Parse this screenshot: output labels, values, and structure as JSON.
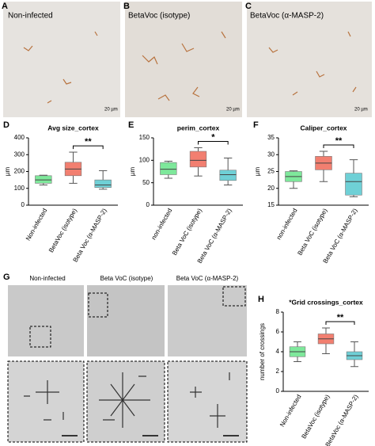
{
  "panels": {
    "images": [
      {
        "letter": "A",
        "label": "Non-infected",
        "scale": "20 µm"
      },
      {
        "letter": "B",
        "label": "BetaVoc (isotype)",
        "scale": "20 µm"
      },
      {
        "letter": "C",
        "label": "BetaVoc (α-MASP-2)",
        "scale": "20 µm"
      }
    ],
    "g": {
      "letter": "G",
      "labels": [
        "Non-infected",
        "Beta VoC (isotype)",
        "Beta VoC (α-MASP-2)"
      ]
    }
  },
  "chart_data": [
    {
      "type": "box",
      "letter": "D",
      "title": "Avg size_cortex",
      "y_label": "µm",
      "categories": [
        "Non-infected",
        "BetaVoc (isotype)",
        "Beta Voc (α-MASP-2)"
      ],
      "colors": [
        "#7ee89b",
        "#f27f70",
        "#6fd0d6"
      ],
      "boxes": [
        {
          "low": 120,
          "q1": 130,
          "median": 150,
          "q3": 175,
          "high": 178
        },
        {
          "low": 130,
          "q1": 175,
          "median": 215,
          "q3": 255,
          "high": 315
        },
        {
          "low": 95,
          "q1": 105,
          "median": 120,
          "q3": 150,
          "high": 205
        }
      ],
      "annotation": "**",
      "ylim": [
        0,
        400
      ],
      "yticks": [
        0,
        100,
        200,
        300,
        400
      ]
    },
    {
      "type": "box",
      "letter": "E",
      "title": "perim_cortex",
      "y_label": "µm",
      "categories": [
        "non-infected",
        "Beta VoC (isotype)",
        "Beta VoC (α-MASP-2)"
      ],
      "colors": [
        "#7ee89b",
        "#f27f70",
        "#6fd0d6"
      ],
      "boxes": [
        {
          "low": 60,
          "q1": 68,
          "median": 80,
          "q3": 95,
          "high": 98
        },
        {
          "low": 65,
          "q1": 85,
          "median": 100,
          "q3": 120,
          "high": 128
        },
        {
          "low": 45,
          "q1": 55,
          "median": 68,
          "q3": 78,
          "high": 105
        }
      ],
      "annotation": "*",
      "ylim": [
        0,
        150
      ],
      "yticks": [
        0,
        50,
        100,
        150
      ]
    },
    {
      "type": "box",
      "letter": "F",
      "title": "Caliper_cortex",
      "y_label": "µm",
      "categories": [
        "non-infected",
        "Beta VoC (isotype)",
        "Beta VoC (α-MASP-2)"
      ],
      "colors": [
        "#7ee89b",
        "#f27f70",
        "#6fd0d6"
      ],
      "boxes": [
        {
          "low": 20,
          "q1": 22,
          "median": 23.5,
          "q3": 25,
          "high": 25.2
        },
        {
          "low": 22,
          "q1": 25.5,
          "median": 27.5,
          "q3": 29.5,
          "high": 31
        },
        {
          "low": 17.5,
          "q1": 18,
          "median": 22,
          "q3": 24.5,
          "high": 28.5
        }
      ],
      "annotation": "**",
      "ylim": [
        15,
        35
      ],
      "yticks": [
        15,
        20,
        25,
        30,
        35
      ]
    },
    {
      "type": "box",
      "letter": "H",
      "title": "*Grid crossings_cortex",
      "y_label": "number of crossings",
      "categories": [
        "Non-infected",
        "BetaVoc (isotype)",
        "BetaVoc (α-MASP-2)"
      ],
      "colors": [
        "#7ee89b",
        "#f27f70",
        "#6fd0d6"
      ],
      "boxes": [
        {
          "low": 3,
          "q1": 3.5,
          "median": 4,
          "q3": 4.5,
          "high": 5
        },
        {
          "low": 3.8,
          "q1": 4.8,
          "median": 5.3,
          "q3": 5.8,
          "high": 6.4
        },
        {
          "low": 2.5,
          "q1": 3.2,
          "median": 3.6,
          "q3": 4,
          "high": 5
        }
      ],
      "annotation": "**",
      "ylim": [
        0,
        8
      ],
      "yticks": [
        0,
        2,
        4,
        6,
        8
      ]
    }
  ]
}
